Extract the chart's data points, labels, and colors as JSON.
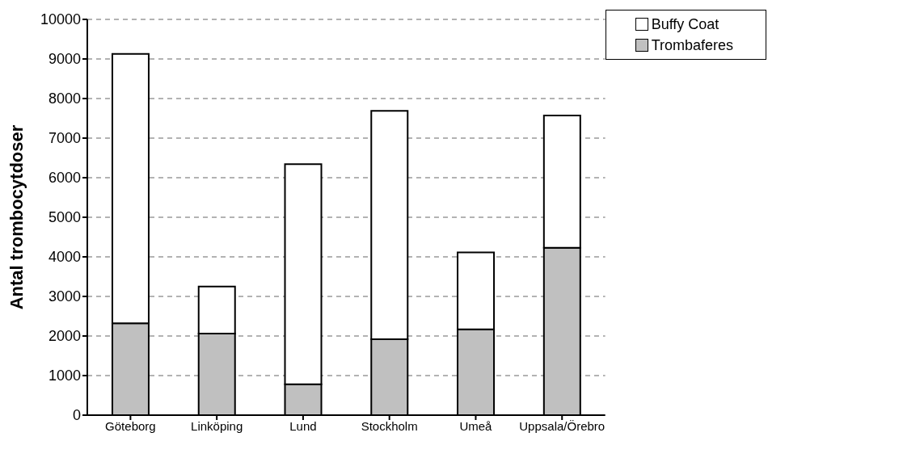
{
  "chart_data": {
    "type": "bar",
    "ylabel": "Antal trombocytdoser",
    "categories": [
      "Göteborg",
      "Linköping",
      "Lund",
      "Stockholm",
      "Umeå",
      "Uppsala/Örebro"
    ],
    "stacked": true,
    "series": [
      {
        "name": "Trombaferes",
        "color": "#c0c0c0",
        "values": [
          2320,
          2060,
          780,
          1920,
          2170,
          4230
        ]
      },
      {
        "name": "Buffy Coat",
        "color": "#ffffff",
        "values": [
          6810,
          1190,
          5560,
          5770,
          1940,
          3340
        ]
      }
    ],
    "ylim": [
      0,
      10000
    ],
    "yticks": [
      0,
      1000,
      2000,
      3000,
      4000,
      5000,
      6000,
      7000,
      8000,
      9000,
      10000
    ],
    "grid": "y",
    "legend": "top right"
  }
}
